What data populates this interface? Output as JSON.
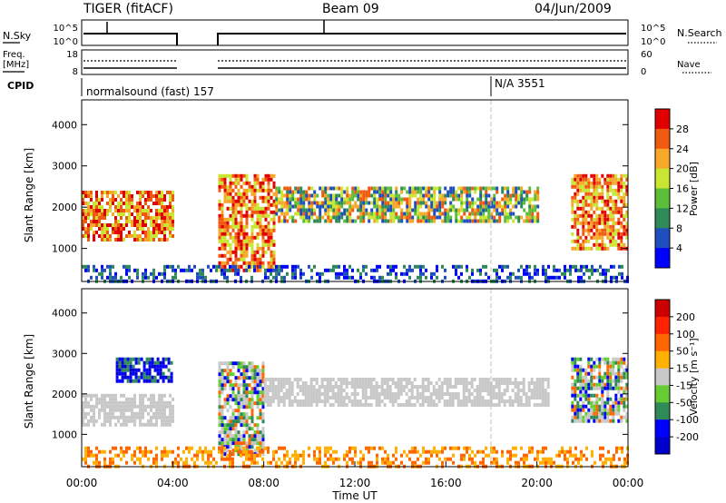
{
  "header": {
    "radar": "TIGER (fitACF)",
    "beam": "Beam 09",
    "date": "04/Jun/2009"
  },
  "panels": {
    "nsky": {
      "left_label": "N.Sky",
      "left_ticks": [
        "10^5",
        "10^0"
      ],
      "right_ticks": [
        "10^5",
        "10^0"
      ],
      "right_label": "N.Search"
    },
    "freq": {
      "left_label_1": "Freq.",
      "left_label_2": "[MHz]",
      "left_ticks": [
        "18",
        "8"
      ],
      "right_ticks": [
        "60",
        "0"
      ],
      "right_label": "Nave"
    },
    "cpid": {
      "label": "CPID",
      "segments": [
        {
          "text": "normalsound (fast) 157",
          "start_hour": 0
        },
        {
          "text": "N/A 3551",
          "start_hour": 18
        }
      ]
    }
  },
  "colors": {
    "power": [
      "#0000ff",
      "#1f4fbf",
      "#2e8b57",
      "#5cbf3a",
      "#c8e632",
      "#f7a828",
      "#f05a10",
      "#e00000"
    ],
    "velocity": [
      "#0000cc",
      "#0000ff",
      "#2e8b57",
      "#66cc33",
      "#c8c8c8",
      "#ffb000",
      "#ff6600",
      "#ff2200",
      "#cc0000"
    ]
  },
  "chart_data": [
    {
      "type": "heatmap",
      "name_parameter": "power",
      "ylabel": "Slant Range [km]",
      "ylim": [
        200,
        4600
      ],
      "yticks": [
        "4000",
        "3000",
        "2000",
        "1000"
      ],
      "xlim_hours": [
        0,
        24
      ],
      "colorbar": {
        "label": "Power [dB]",
        "ticks": [
          "28",
          "24",
          "20",
          "16",
          "12",
          "8",
          "4"
        ],
        "range": [
          0,
          32
        ]
      },
      "data_gaps_hours": [
        [
          4,
          6
        ]
      ],
      "echo_regions": [
        {
          "t": [
            0.0,
            4.0
          ],
          "r": [
            1200,
            2400
          ],
          "level": "strong"
        },
        {
          "t": [
            6.0,
            8.5
          ],
          "r": [
            500,
            2800
          ],
          "level": "strong"
        },
        {
          "t": [
            8.5,
            20.0
          ],
          "r": [
            1700,
            2500
          ],
          "level": "moderate"
        },
        {
          "t": [
            21.5,
            24.0
          ],
          "r": [
            1000,
            2800
          ],
          "level": "strong"
        },
        {
          "t": [
            0.0,
            24.0
          ],
          "r": [
            200,
            600
          ],
          "level": "weak"
        }
      ]
    },
    {
      "type": "heatmap",
      "name_parameter": "velocity",
      "ylabel": "Slant Range [km]",
      "ylim": [
        200,
        4600
      ],
      "yticks": [
        "4000",
        "3000",
        "2000",
        "1000"
      ],
      "xlim_hours": [
        0,
        24
      ],
      "xticks": [
        "00:00",
        "04:00",
        "08:00",
        "12:00",
        "16:00",
        "20:00",
        "00:00"
      ],
      "xlabel": "Time UT",
      "colorbar": {
        "label": "Velocity [m s⁻¹]",
        "ticks": [
          "200",
          "100",
          "50",
          "15",
          "-15",
          "-50",
          "-100",
          "-200"
        ]
      },
      "data_gaps_hours": [
        [
          4,
          6
        ]
      ],
      "echo_regions": [
        {
          "t": [
            0.0,
            4.0
          ],
          "r": [
            1200,
            2000
          ],
          "level": "ground"
        },
        {
          "t": [
            1.5,
            4.0
          ],
          "r": [
            2300,
            2900
          ],
          "level": "toward"
        },
        {
          "t": [
            6.0,
            8.0
          ],
          "r": [
            500,
            2800
          ],
          "level": "mixed"
        },
        {
          "t": [
            8.0,
            20.5
          ],
          "r": [
            1700,
            2400
          ],
          "level": "ground"
        },
        {
          "t": [
            21.5,
            24.0
          ],
          "r": [
            1300,
            2900
          ],
          "level": "mixed"
        },
        {
          "t": [
            0.0,
            24.0
          ],
          "r": [
            200,
            700
          ],
          "level": "away"
        }
      ]
    }
  ]
}
